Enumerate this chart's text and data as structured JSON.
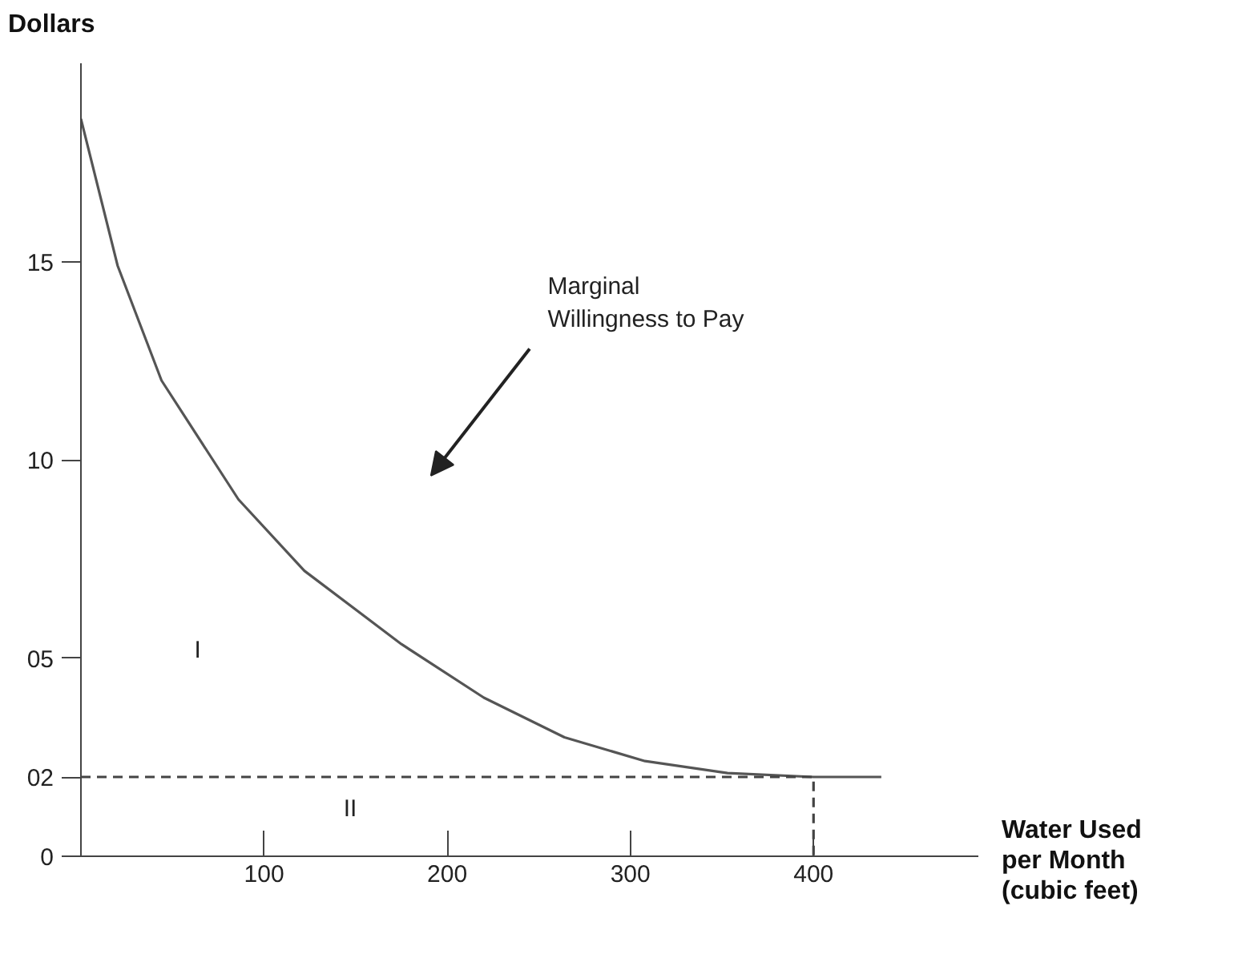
{
  "chart_data": {
    "type": "line",
    "xlabel": "Water Used per Month (cubic feet)",
    "ylabel": "Dollars",
    "xlim": [
      0,
      490
    ],
    "ylim": [
      0,
      20
    ],
    "xticks": [
      100,
      200,
      300,
      400
    ],
    "yticks": [
      0,
      {
        "value": 2,
        "label": "02"
      },
      {
        "value": 5,
        "label": "05"
      },
      10,
      15
    ],
    "series": [
      {
        "color": "#555555",
        "line_style": "solid",
        "x": [
          0,
          20,
          44,
          86,
          122,
          175,
          220,
          264,
          308,
          353,
          400,
          437
        ],
        "values": [
          18.6,
          14.9,
          12,
          9,
          7.2,
          5.35,
          4,
          3,
          2.4,
          2.1,
          2,
          2
        ]
      },
      {
        "color": "#444444",
        "line_style": "dashed",
        "x": [
          0,
          400,
          400
        ],
        "values": [
          2,
          2,
          0
        ]
      }
    ],
    "annotations": [
      "Marginal Willingness to Pay",
      "I",
      "II"
    ],
    "grid": false,
    "marker": "none"
  }
}
